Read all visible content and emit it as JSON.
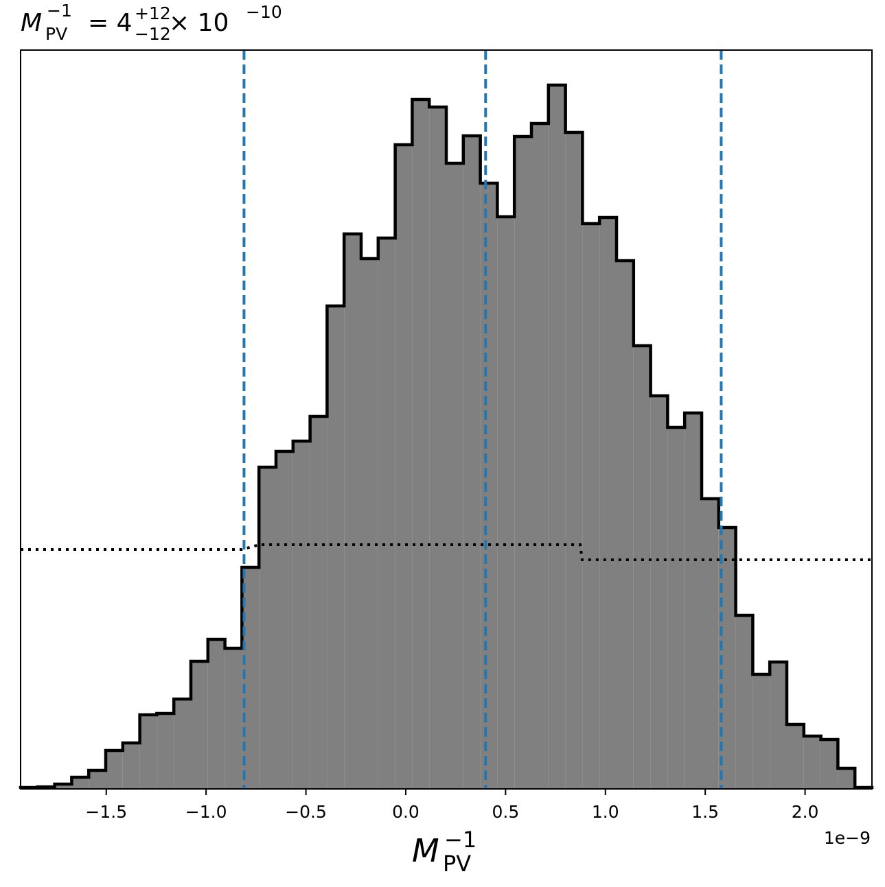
{
  "chart_data": {
    "type": "histogram",
    "title": {
      "symbol": "M",
      "sup": "−1",
      "sub": "PV",
      "equals": "= 4",
      "upper": "+12",
      "lower": "−12",
      "times": "× 10",
      "exponent": "−10"
    },
    "xlabel": {
      "symbol": "M",
      "sup": "−1",
      "sub": "PV"
    },
    "offset_text": "1e−9",
    "color": "#808080",
    "edge_color": "#000000",
    "bins": [
      -1.929,
      -1.8437,
      -1.7584,
      -1.6732,
      -1.5879,
      -1.5026,
      -1.4173,
      -1.332,
      -1.2468,
      -1.1615,
      -1.0762,
      -0.9909,
      -0.9056,
      -0.8204,
      -0.7351,
      -0.6498,
      -0.5645,
      -0.4792,
      -0.394,
      -0.3087,
      -0.2234,
      -0.1381,
      -0.0528,
      0.0324,
      0.1177,
      0.203,
      0.2883,
      0.3736,
      0.4588,
      0.5441,
      0.6294,
      0.7147,
      0.8,
      0.8852,
      0.9705,
      1.0558,
      1.1411,
      1.2264,
      1.3116,
      1.3969,
      1.4822,
      1.5675,
      1.6528,
      1.738,
      1.8233,
      1.9086,
      1.9939,
      2.0792,
      2.1644,
      2.2497,
      2.335
    ],
    "values": [
      2,
      3,
      7,
      17,
      27,
      56,
      67,
      108,
      110,
      131,
      186,
      218,
      205,
      323,
      469,
      492,
      507,
      543,
      704,
      809,
      773,
      803,
      939,
      1005,
      994,
      912,
      952,
      883,
      834,
      951,
      970,
      1026,
      957,
      824,
      833,
      770,
      646,
      573,
      527,
      548,
      423,
      381,
      253,
      167,
      185,
      94,
      77,
      72,
      30,
      2
    ],
    "vlines": [
      -0.81,
      0.4,
      1.58
    ],
    "vline_color": "#1f77b4",
    "reference_line": {
      "x": [
        -1.929,
        -0.8218,
        -0.7324,
        0.8734,
        0.8838,
        2.335
      ],
      "values": [
        349,
        349,
        356,
        356,
        334,
        334
      ],
      "color": "#000000"
    },
    "xlim": [
      -1.929,
      2.335
    ],
    "ylim": [
      0,
      1077
    ],
    "xticks": [
      {
        "value": -1.5,
        "label": "−1.5"
      },
      {
        "value": -1.0,
        "label": "−1.0"
      },
      {
        "value": -0.5,
        "label": "−0.5"
      },
      {
        "value": 0,
        "label": "0.0"
      },
      {
        "value": 0.5,
        "label": "0.5"
      },
      {
        "value": 1.0,
        "label": "1.0"
      },
      {
        "value": 1.5,
        "label": "1.5"
      },
      {
        "value": 2.0,
        "label": "2.0"
      }
    ]
  }
}
